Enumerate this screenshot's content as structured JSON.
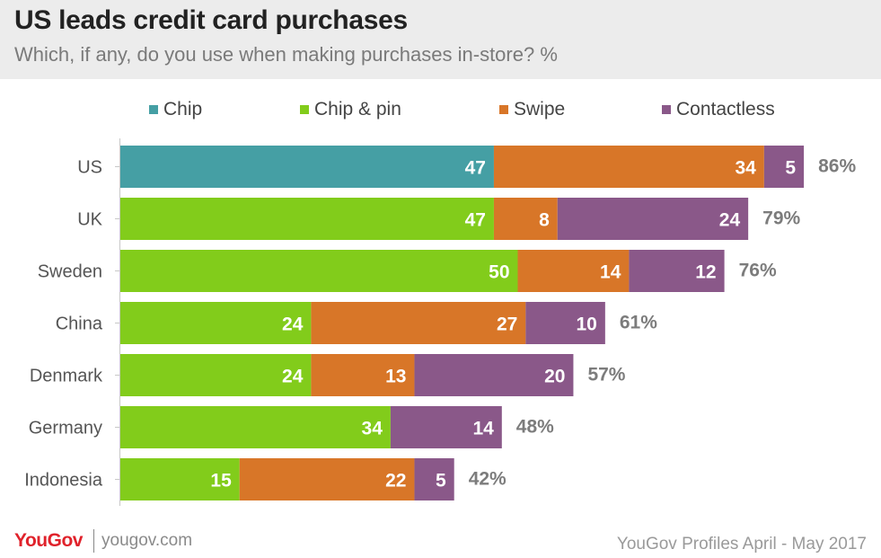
{
  "title": "US leads credit card purchases",
  "subtitle": "Which, if any, do you use when making purchases in-store? %",
  "footer": {
    "logo": "YouGov",
    "url": "yougov.com",
    "source": "YouGov Profiles April - May 2017"
  },
  "chart_data": {
    "type": "bar",
    "orientation": "horizontal",
    "stacked": true,
    "title": "US leads credit card purchases",
    "subtitle": "Which, if any, do you use when making purchases in-store? %",
    "legend_position": "top",
    "grid": false,
    "xlim": [
      0,
      100
    ],
    "categories": [
      "US",
      "UK",
      "Sweden",
      "China",
      "Denmark",
      "Germany",
      "Indonesia"
    ],
    "series": [
      {
        "name": "Chip",
        "color": "#459fa4",
        "values": [
          47,
          null,
          null,
          null,
          null,
          null,
          null
        ]
      },
      {
        "name": "Chip & pin",
        "color": "#82cc1b",
        "values": [
          null,
          47,
          50,
          24,
          24,
          34,
          15
        ]
      },
      {
        "name": "Swipe",
        "color": "#d87628",
        "values": [
          34,
          8,
          14,
          27,
          13,
          null,
          22
        ]
      },
      {
        "name": "Contactless",
        "color": "#8a5889",
        "values": [
          5,
          24,
          12,
          10,
          20,
          14,
          5
        ]
      }
    ],
    "totals": [
      "86%",
      "79%",
      "76%",
      "61%",
      "57%",
      "48%",
      "42%"
    ]
  }
}
